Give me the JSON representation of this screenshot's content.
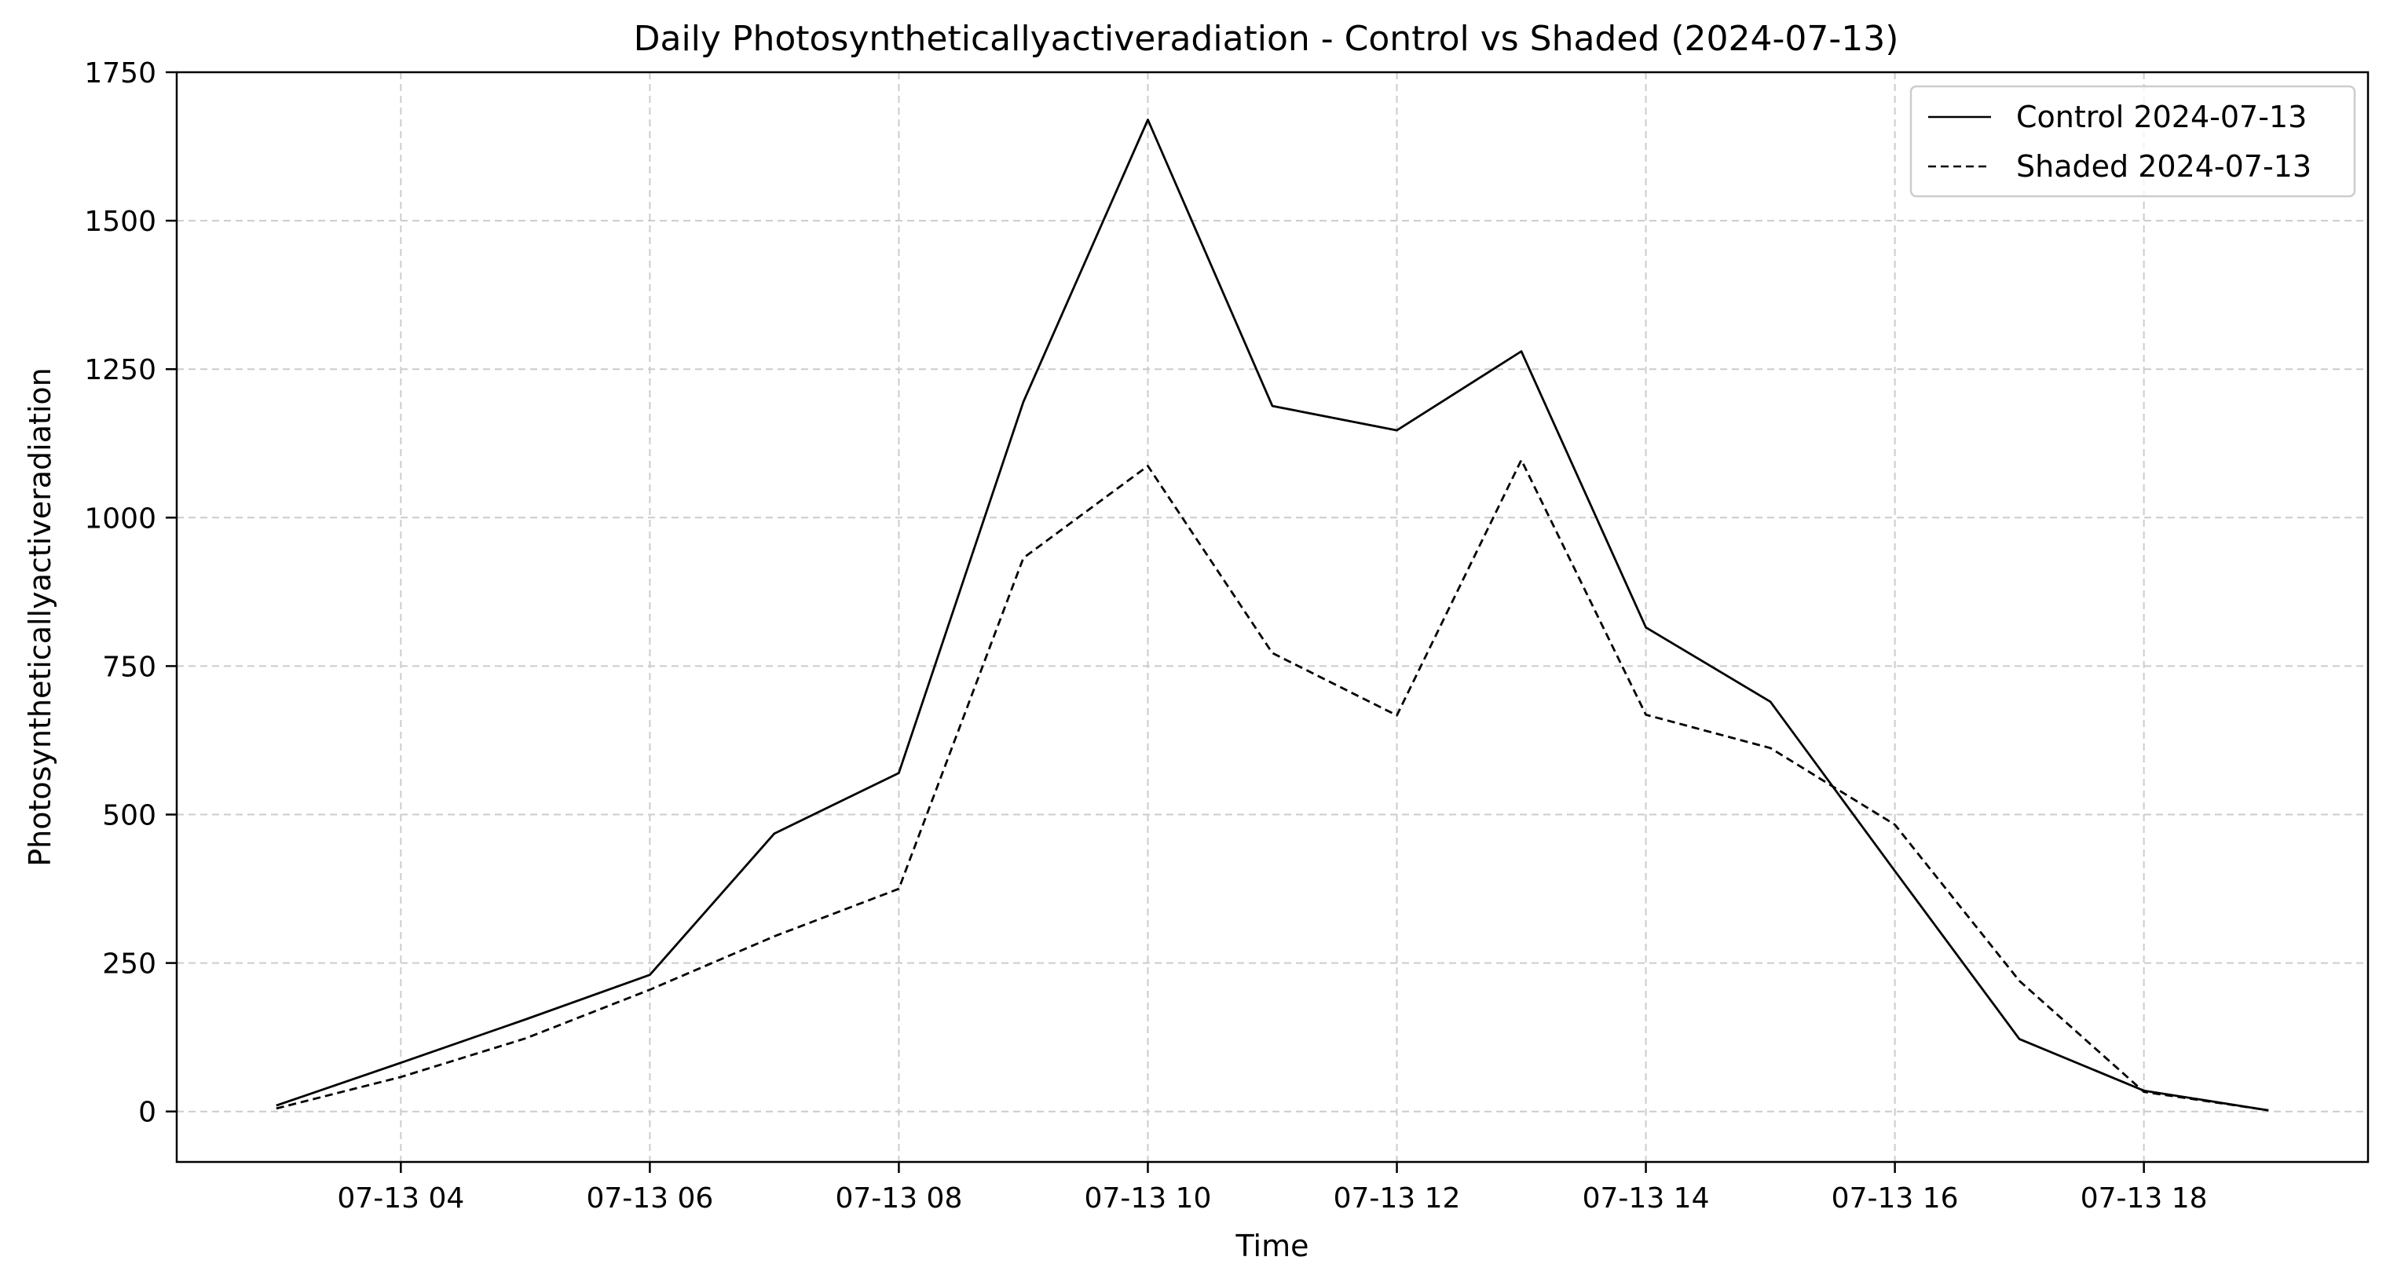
{
  "chart_data": {
    "type": "line",
    "title": "Daily Photosyntheticallyactiveradiation - Control vs Shaded (2024-07-13)",
    "xlabel": "Time",
    "ylabel": "Photosyntheticallyactiveradiation",
    "x": [
      "2024-07-13 03:00",
      "2024-07-13 04:00",
      "2024-07-13 05:00",
      "2024-07-13 06:00",
      "2024-07-13 07:00",
      "2024-07-13 08:00",
      "2024-07-13 09:00",
      "2024-07-13 10:00",
      "2024-07-13 11:00",
      "2024-07-13 12:00",
      "2024-07-13 13:00",
      "2024-07-13 14:00",
      "2024-07-13 15:00",
      "2024-07-13 16:00",
      "2024-07-13 17:00",
      "2024-07-13 18:00",
      "2024-07-13 19:00"
    ],
    "xlim": [
      "2024-07-13 02:12",
      "2024-07-13 19:48"
    ],
    "ylim": [
      -85,
      1750
    ],
    "xticks": [
      "2024-07-13 04:00",
      "2024-07-13 06:00",
      "2024-07-13 08:00",
      "2024-07-13 10:00",
      "2024-07-13 12:00",
      "2024-07-13 14:00",
      "2024-07-13 16:00",
      "2024-07-13 18:00"
    ],
    "xtick_labels": [
      "07-13 04",
      "07-13 06",
      "07-13 08",
      "07-13 10",
      "07-13 12",
      "07-13 14",
      "07-13 16",
      "07-13 18"
    ],
    "yticks": [
      0,
      250,
      500,
      750,
      1000,
      1250,
      1500,
      1750
    ],
    "ytick_labels": [
      "0",
      "250",
      "500",
      "750",
      "1000",
      "1250",
      "1500",
      "1750"
    ],
    "grid": true,
    "legend_position": "top-right",
    "series": [
      {
        "name": "Control 2024-07-13",
        "line_style": "solid",
        "color": "#000000",
        "values": [
          10,
          82,
          155,
          230,
          468,
          570,
          1195,
          1670,
          1188,
          1147,
          1280,
          815,
          690,
          405,
          122,
          35,
          2
        ]
      },
      {
        "name": "Shaded 2024-07-13",
        "line_style": "dashed",
        "color": "#000000",
        "values": [
          5,
          58,
          123,
          205,
          295,
          375,
          932,
          1087,
          772,
          667,
          1097,
          668,
          612,
          483,
          220,
          33,
          2
        ]
      }
    ]
  }
}
